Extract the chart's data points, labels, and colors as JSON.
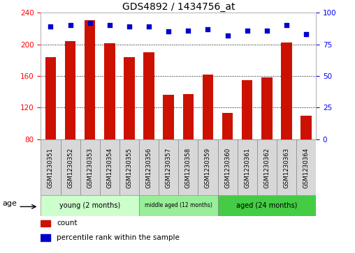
{
  "title": "GDS4892 / 1434756_at",
  "samples": [
    "GSM1230351",
    "GSM1230352",
    "GSM1230353",
    "GSM1230354",
    "GSM1230355",
    "GSM1230356",
    "GSM1230357",
    "GSM1230358",
    "GSM1230359",
    "GSM1230360",
    "GSM1230361",
    "GSM1230362",
    "GSM1230363",
    "GSM1230364"
  ],
  "counts": [
    184,
    204,
    230,
    201,
    184,
    190,
    136,
    137,
    162,
    113,
    155,
    158,
    202,
    110
  ],
  "percentiles": [
    89,
    90,
    92,
    90,
    89,
    89,
    85,
    86,
    87,
    82,
    86,
    86,
    90,
    83
  ],
  "ylim_left": [
    80,
    240
  ],
  "ylim_right": [
    0,
    100
  ],
  "yticks_left": [
    80,
    120,
    160,
    200,
    240
  ],
  "yticks_right": [
    0,
    25,
    50,
    75,
    100
  ],
  "bar_color": "#cc1100",
  "dot_color": "#0000cc",
  "bar_width": 0.55,
  "groups": [
    {
      "label": "young (2 months)",
      "start": 0,
      "end": 5
    },
    {
      "label": "middle aged (12 months)",
      "start": 5,
      "end": 9
    },
    {
      "label": "aged (24 months)",
      "start": 9,
      "end": 14
    }
  ],
  "group_colors": [
    "#ccffcc",
    "#99ee99",
    "#44cc44"
  ],
  "age_label": "age",
  "legend_count": "count",
  "legend_percentile": "percentile rank within the sample",
  "cell_color": "#d8d8d8",
  "grid_color": "#000000"
}
